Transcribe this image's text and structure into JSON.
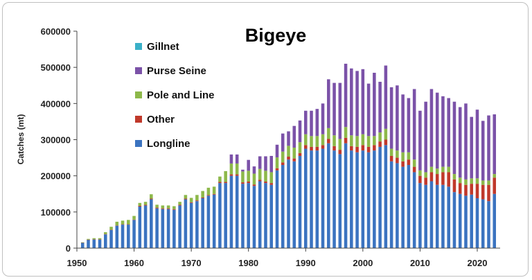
{
  "chart_data": {
    "type": "bar",
    "stacked": true,
    "title": "Bigeye",
    "xlabel": "",
    "ylabel": "Catches (mt)",
    "ylim": [
      0,
      600000
    ],
    "yticks": [
      0,
      100000,
      200000,
      300000,
      400000,
      500000,
      600000
    ],
    "xticks": [
      1950,
      1960,
      1970,
      1980,
      1990,
      2000,
      2010,
      2020
    ],
    "grid": false,
    "legend_position": "top-left",
    "legend_order": [
      "Gillnet",
      "Purse Seine",
      "Pole and Line",
      "Other",
      "Longline"
    ],
    "x": [
      1951,
      1952,
      1953,
      1954,
      1955,
      1956,
      1957,
      1958,
      1959,
      1960,
      1961,
      1962,
      1963,
      1964,
      1965,
      1966,
      1967,
      1968,
      1969,
      1970,
      1971,
      1972,
      1973,
      1974,
      1975,
      1976,
      1977,
      1978,
      1979,
      1980,
      1981,
      1982,
      1983,
      1984,
      1985,
      1986,
      1987,
      1988,
      1989,
      1990,
      1991,
      1992,
      1993,
      1994,
      1995,
      1996,
      1997,
      1998,
      1999,
      2000,
      2001,
      2002,
      2003,
      2004,
      2005,
      2006,
      2007,
      2008,
      2009,
      2010,
      2011,
      2012,
      2013,
      2014,
      2015,
      2016,
      2017,
      2018,
      2019,
      2020,
      2021,
      2022,
      2023
    ],
    "series": [
      {
        "name": "Longline",
        "color": "#3b73c0",
        "values": [
          15000,
          23000,
          24000,
          24000,
          38000,
          50000,
          62000,
          65000,
          65000,
          78000,
          115000,
          118000,
          135000,
          110000,
          108000,
          108000,
          106000,
          118000,
          135000,
          125000,
          130000,
          138000,
          145000,
          148000,
          180000,
          180000,
          200000,
          200000,
          178000,
          180000,
          172000,
          185000,
          180000,
          175000,
          215000,
          230000,
          245000,
          240000,
          255000,
          275000,
          270000,
          270000,
          275000,
          290000,
          270000,
          260000,
          290000,
          270000,
          265000,
          270000,
          265000,
          270000,
          280000,
          285000,
          240000,
          235000,
          225000,
          230000,
          210000,
          180000,
          175000,
          185000,
          175000,
          175000,
          170000,
          155000,
          150000,
          145000,
          148000,
          138000,
          135000,
          130000,
          150000
        ]
      },
      {
        "name": "Other",
        "color": "#c0392b",
        "values": [
          500,
          500,
          500,
          500,
          1000,
          1000,
          1000,
          1000,
          1000,
          1000,
          2000,
          2000,
          2000,
          2000,
          2000,
          2000,
          2000,
          2000,
          2000,
          2000,
          2000,
          2000,
          2000,
          2000,
          3000,
          3000,
          4000,
          4000,
          4000,
          4000,
          4000,
          4000,
          4000,
          5000,
          6000,
          7000,
          8000,
          8000,
          8000,
          10000,
          10000,
          10000,
          10000,
          12000,
          12000,
          12000,
          15000,
          12000,
          15000,
          15000,
          15000,
          15000,
          15000,
          15000,
          15000,
          15000,
          15000,
          15000,
          15000,
          20000,
          20000,
          25000,
          30000,
          35000,
          40000,
          35000,
          30000,
          30000,
          30000,
          40000,
          40000,
          45000,
          45000
        ]
      },
      {
        "name": "Pole and Line",
        "color": "#8db84a",
        "values": [
          500,
          2000,
          3000,
          3000,
          5000,
          8000,
          10000,
          10000,
          12000,
          10000,
          8000,
          8000,
          12000,
          8000,
          8000,
          8000,
          8000,
          8000,
          10000,
          12000,
          15000,
          18000,
          20000,
          20000,
          15000,
          30000,
          30000,
          30000,
          30000,
          30000,
          30000,
          30000,
          30000,
          30000,
          30000,
          30000,
          30000,
          30000,
          30000,
          30000,
          30000,
          30000,
          30000,
          30000,
          30000,
          30000,
          30000,
          30000,
          30000,
          30000,
          30000,
          25000,
          25000,
          30000,
          20000,
          20000,
          25000,
          20000,
          20000,
          15000,
          15000,
          15000,
          15000,
          15000,
          15000,
          15000,
          15000,
          15000,
          15000,
          15000,
          12000,
          12000,
          10000
        ]
      },
      {
        "name": "Purse Seine",
        "color": "#7b52a8",
        "values": [
          0,
          0,
          0,
          0,
          0,
          0,
          0,
          0,
          0,
          0,
          0,
          0,
          0,
          0,
          0,
          0,
          0,
          0,
          0,
          0,
          0,
          0,
          0,
          0,
          0,
          0,
          25000,
          25000,
          5000,
          30000,
          20000,
          35000,
          40000,
          45000,
          35000,
          50000,
          40000,
          60000,
          60000,
          65000,
          70000,
          75000,
          85000,
          135000,
          145000,
          155000,
          175000,
          185000,
          180000,
          180000,
          145000,
          175000,
          140000,
          175000,
          170000,
          180000,
          160000,
          150000,
          195000,
          165000,
          195000,
          215000,
          210000,
          195000,
          190000,
          200000,
          195000,
          210000,
          170000,
          190000,
          165000,
          180000,
          165000
        ]
      },
      {
        "name": "Gillnet",
        "color": "#3ab0c8",
        "values": [
          0,
          0,
          0,
          0,
          0,
          0,
          0,
          0,
          0,
          0,
          0,
          0,
          0,
          0,
          0,
          0,
          0,
          0,
          0,
          0,
          0,
          0,
          0,
          0,
          0,
          0,
          0,
          0,
          0,
          0,
          0,
          0,
          0,
          0,
          0,
          0,
          0,
          0,
          0,
          0,
          0,
          0,
          0,
          0,
          0,
          0,
          0,
          0,
          0,
          0,
          0,
          0,
          0,
          0,
          0,
          0,
          0,
          0,
          0,
          0,
          0,
          0,
          0,
          0,
          0,
          0,
          0,
          0,
          0,
          0,
          0,
          0,
          0
        ]
      }
    ]
  }
}
